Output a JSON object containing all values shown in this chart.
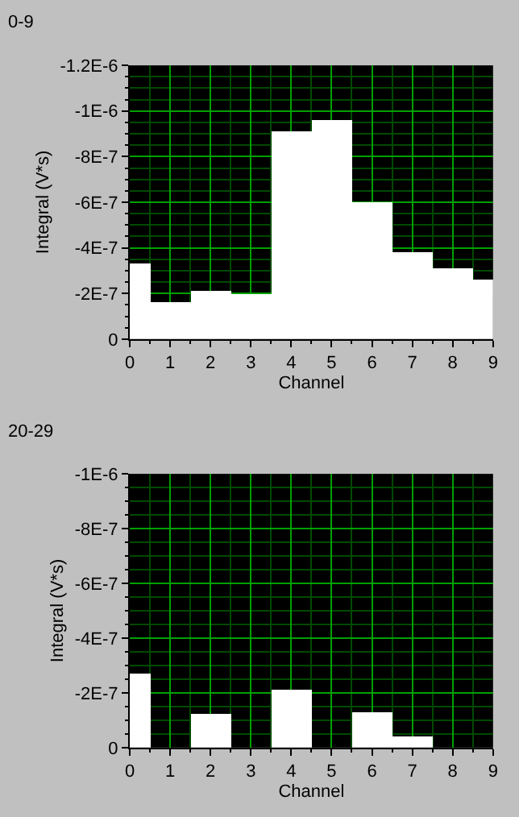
{
  "chart_data": [
    {
      "type": "bar",
      "title": "0-9",
      "xlabel": "Channel",
      "ylabel": "Integral (V*s)",
      "x": [
        0,
        1,
        2,
        3,
        4,
        5,
        6,
        7,
        8,
        9
      ],
      "values": [
        -3.3e-07,
        -1.6e-07,
        -2.1e-07,
        -2e-07,
        -9.1e-07,
        -9.6e-07,
        -6e-07,
        -3.8e-07,
        -3.1e-07,
        -2.6e-07
      ],
      "color": "#ffffff",
      "xlim": [
        0,
        9
      ],
      "xticks": [
        0,
        1,
        2,
        3,
        4,
        5,
        6,
        7,
        8,
        9,
        {
          "value": 0.5,
          "label": null
        },
        {
          "value": 1.5,
          "label": null
        },
        {
          "value": 2.5,
          "label": null
        },
        {
          "value": 3.5,
          "label": null
        },
        {
          "value": 4.5,
          "label": null
        },
        {
          "value": 5.5,
          "label": null
        },
        {
          "value": 6.5,
          "label": null
        },
        {
          "value": 7.5,
          "label": null
        },
        {
          "value": 8.5,
          "label": null
        }
      ],
      "ylim": [
        0,
        -1.2e-06
      ],
      "yticks": [
        0,
        {
          "value": -2e-07,
          "label": "-2E-7"
        },
        {
          "value": -4e-07,
          "label": "-4E-7"
        },
        {
          "value": -6e-07,
          "label": "-6E-7"
        },
        {
          "value": -8e-07,
          "label": "-8E-7"
        },
        {
          "value": -1e-06,
          "label": "-1E-6"
        },
        {
          "value": -1.2e-06,
          "label": "-1.2E-6"
        },
        {
          "value": -5e-08,
          "label": null
        },
        {
          "value": -1e-07,
          "label": null
        },
        {
          "value": -1.5e-07,
          "label": null
        },
        {
          "value": -2.5e-07,
          "label": null
        },
        {
          "value": -3e-07,
          "label": null
        },
        {
          "value": -3.5e-07,
          "label": null
        },
        {
          "value": -4.5e-07,
          "label": null
        },
        {
          "value": -5e-07,
          "label": null
        },
        {
          "value": -5.5e-07,
          "label": null
        },
        {
          "value": -6.5e-07,
          "label": null
        },
        {
          "value": -7e-07,
          "label": null
        },
        {
          "value": -7.5e-07,
          "label": null
        },
        {
          "value": -8.5e-07,
          "label": null
        },
        {
          "value": -9e-07,
          "label": null
        },
        {
          "value": -9.5e-07,
          "label": null
        },
        {
          "value": -1.05e-06,
          "label": null
        },
        {
          "value": -1.1e-06,
          "label": null
        },
        {
          "value": -1.15e-06,
          "label": null
        }
      ],
      "grid": true
    },
    {
      "type": "bar",
      "title": "20-29",
      "xlabel": "Channel",
      "ylabel": "Integral (V*s)",
      "x": [
        0,
        1,
        2,
        3,
        4,
        5,
        6,
        7,
        8,
        9
      ],
      "values": [
        -2.7e-07,
        0,
        -1.2e-07,
        0,
        -2.1e-07,
        0,
        -1.3e-07,
        -4e-08,
        0,
        0
      ],
      "color": "#ffffff",
      "xlim": [
        0,
        9
      ],
      "xticks": [
        0,
        1,
        2,
        3,
        4,
        5,
        6,
        7,
        8,
        9,
        {
          "value": 0.5,
          "label": null
        },
        {
          "value": 1.5,
          "label": null
        },
        {
          "value": 2.5,
          "label": null
        },
        {
          "value": 3.5,
          "label": null
        },
        {
          "value": 4.5,
          "label": null
        },
        {
          "value": 5.5,
          "label": null
        },
        {
          "value": 6.5,
          "label": null
        },
        {
          "value": 7.5,
          "label": null
        },
        {
          "value": 8.5,
          "label": null
        }
      ],
      "ylim": [
        0,
        -1e-06
      ],
      "yticks": [
        0,
        {
          "value": -2e-07,
          "label": "-2E-7"
        },
        {
          "value": -4e-07,
          "label": "-4E-7"
        },
        {
          "value": -6e-07,
          "label": "-6E-7"
        },
        {
          "value": -8e-07,
          "label": "-8E-7"
        },
        {
          "value": -1e-06,
          "label": "-1E-6"
        },
        {
          "value": -5e-08,
          "label": null
        },
        {
          "value": -1e-07,
          "label": null
        },
        {
          "value": -1.5e-07,
          "label": null
        },
        {
          "value": -2.5e-07,
          "label": null
        },
        {
          "value": -3e-07,
          "label": null
        },
        {
          "value": -3.5e-07,
          "label": null
        },
        {
          "value": -4.5e-07,
          "label": null
        },
        {
          "value": -5e-07,
          "label": null
        },
        {
          "value": -5.5e-07,
          "label": null
        },
        {
          "value": -6.5e-07,
          "label": null
        },
        {
          "value": -7e-07,
          "label": null
        },
        {
          "value": -7.5e-07,
          "label": null
        },
        {
          "value": -8.5e-07,
          "label": null
        },
        {
          "value": -9e-07,
          "label": null
        },
        {
          "value": -9.5e-07,
          "label": null
        }
      ],
      "grid": true
    }
  ]
}
